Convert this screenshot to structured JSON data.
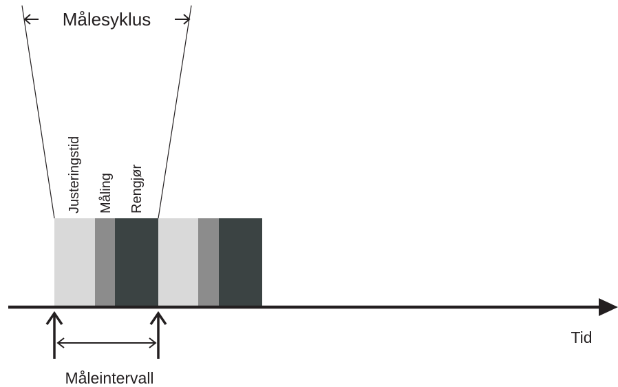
{
  "labels": {
    "cycle": "Målesyklus",
    "phase_adjust": "Justeringstid",
    "phase_measure": "Måling",
    "phase_clean": "Rengjør",
    "time": "Tid",
    "interval": "Måleintervall"
  },
  "colors": {
    "adjust": "#d9d9d9",
    "measure": "#8c8c8c",
    "clean": "#3b4343",
    "ink": "#231f20"
  }
}
